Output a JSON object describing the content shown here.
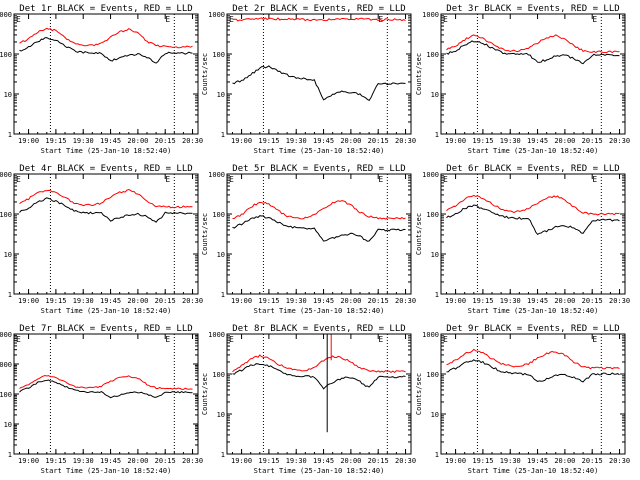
{
  "figure": {
    "common": {
      "xlabel": "Start Time (25-Jan-10 18:52:40)",
      "ylabel": "Counts/sec",
      "x_tick_labels": [
        "19:00",
        "19:15",
        "19:30",
        "19:45",
        "20:00",
        "20:15",
        "20:30"
      ],
      "marker_letters": [
        "E",
        "E"
      ],
      "colors": {
        "events": "#000000",
        "lld": "#ff0000",
        "axes": "#000000",
        "background": "#ffffff"
      }
    }
  },
  "chart_data": [
    {
      "type": "line",
      "title": "Det 1r BLACK = Events, RED = LLD",
      "x_ticks": [
        "19:00",
        "19:15",
        "19:30",
        "19:45",
        "20:00",
        "20:15",
        "20:30"
      ],
      "y_scale": "log",
      "ylim": [
        1,
        1000
      ],
      "y_tick_labels": [
        "1",
        "10",
        "100",
        "1000"
      ],
      "x": [
        "18:55",
        "19:00",
        "19:05",
        "19:10",
        "19:15",
        "19:20",
        "19:25",
        "19:30",
        "19:35",
        "19:40",
        "19:45",
        "19:50",
        "19:55",
        "20:00",
        "20:05",
        "20:10",
        "20:15",
        "20:20",
        "20:25",
        "20:30"
      ],
      "dotted_vlines": [
        "19:12",
        "20:20"
      ],
      "series": [
        {
          "name": "Events",
          "color": "#000000",
          "values": [
            120,
            150,
            210,
            250,
            220,
            160,
            120,
            110,
            105,
            105,
            68,
            78,
            95,
            100,
            82,
            60,
            105,
            105,
            105,
            105
          ]
        },
        {
          "name": "LLD",
          "color": "#ff0000",
          "values": [
            185,
            240,
            350,
            440,
            380,
            260,
            190,
            170,
            165,
            190,
            260,
            360,
            410,
            330,
            210,
            160,
            155,
            150,
            150,
            150
          ]
        }
      ]
    },
    {
      "type": "line",
      "title": "Det 2r BLACK = Events, RED = LLD",
      "x_ticks": [
        "19:00",
        "19:15",
        "19:30",
        "19:45",
        "20:00",
        "20:15",
        "20:30"
      ],
      "y_scale": "log",
      "ylim": [
        1,
        1000
      ],
      "y_tick_labels": [
        "1",
        "10",
        "100",
        "1000"
      ],
      "x": [
        "18:55",
        "19:00",
        "19:05",
        "19:10",
        "19:15",
        "19:20",
        "19:25",
        "19:30",
        "19:35",
        "19:40",
        "19:45",
        "19:50",
        "19:55",
        "20:00",
        "20:05",
        "20:10",
        "20:15",
        "20:20",
        "20:25",
        "20:30"
      ],
      "dotted_vlines": [
        "19:12",
        "20:20"
      ],
      "series": [
        {
          "name": "Events",
          "color": "#000000",
          "values": [
            18,
            22,
            30,
            45,
            48,
            38,
            30,
            25,
            24,
            22,
            7,
            10,
            12,
            11,
            10,
            7,
            18,
            18,
            18,
            18
          ]
        },
        {
          "name": "LLD",
          "color": "#ff0000",
          "values": [
            700,
            720,
            750,
            760,
            760,
            750,
            740,
            730,
            720,
            720,
            720,
            730,
            750,
            760,
            750,
            730,
            720,
            720,
            720,
            720
          ]
        }
      ]
    },
    {
      "type": "line",
      "title": "Det 3r BLACK = Events, RED = LLD",
      "x_ticks": [
        "19:00",
        "19:15",
        "19:30",
        "19:45",
        "20:00",
        "20:15",
        "20:30"
      ],
      "y_scale": "log",
      "ylim": [
        1,
        1000
      ],
      "y_tick_labels": [
        "1",
        "10",
        "100",
        "1000"
      ],
      "x": [
        "18:55",
        "19:00",
        "19:05",
        "19:10",
        "19:15",
        "19:20",
        "19:25",
        "19:30",
        "19:35",
        "19:40",
        "19:45",
        "19:50",
        "19:55",
        "20:00",
        "20:05",
        "20:10",
        "20:15",
        "20:20",
        "20:25",
        "20:30"
      ],
      "dotted_vlines": [
        "19:12",
        "20:20"
      ],
      "series": [
        {
          "name": "Events",
          "color": "#000000",
          "values": [
            100,
            120,
            170,
            210,
            190,
            140,
            110,
            100,
            100,
            98,
            62,
            72,
            88,
            92,
            78,
            58,
            95,
            95,
            95,
            95
          ]
        },
        {
          "name": "LLD",
          "color": "#ff0000",
          "values": [
            130,
            160,
            230,
            290,
            250,
            180,
            135,
            120,
            120,
            140,
            190,
            250,
            290,
            240,
            160,
            120,
            115,
            115,
            115,
            115
          ]
        }
      ]
    },
    {
      "type": "line",
      "title": "Det 4r BLACK = Events, RED = LLD",
      "x_ticks": [
        "19:00",
        "19:15",
        "19:30",
        "19:45",
        "20:00",
        "20:15",
        "20:30"
      ],
      "y_scale": "log",
      "ylim": [
        1,
        1000
      ],
      "y_tick_labels": [
        "1",
        "10",
        "100",
        "1000"
      ],
      "x": [
        "18:55",
        "19:00",
        "19:05",
        "19:10",
        "19:15",
        "19:20",
        "19:25",
        "19:30",
        "19:35",
        "19:40",
        "19:45",
        "19:50",
        "19:55",
        "20:00",
        "20:05",
        "20:10",
        "20:15",
        "20:20",
        "20:25",
        "20:30"
      ],
      "dotted_vlines": [
        "19:12",
        "20:20"
      ],
      "series": [
        {
          "name": "Events",
          "color": "#000000",
          "values": [
            110,
            140,
            200,
            240,
            210,
            160,
            120,
            110,
            105,
            105,
            70,
            80,
            95,
            100,
            85,
            62,
            105,
            105,
            105,
            105
          ]
        },
        {
          "name": "LLD",
          "color": "#ff0000",
          "values": [
            190,
            240,
            340,
            400,
            360,
            260,
            190,
            170,
            165,
            190,
            260,
            350,
            390,
            320,
            210,
            160,
            150,
            150,
            150,
            150
          ]
        }
      ]
    },
    {
      "type": "line",
      "title": "Det 5r BLACK = Events, RED = LLD",
      "x_ticks": [
        "19:00",
        "19:15",
        "19:30",
        "19:45",
        "20:00",
        "20:15",
        "20:30"
      ],
      "y_scale": "log",
      "ylim": [
        1,
        1000
      ],
      "y_tick_labels": [
        "1",
        "10",
        "100",
        "1000"
      ],
      "x": [
        "18:55",
        "19:00",
        "19:05",
        "19:10",
        "19:15",
        "19:20",
        "19:25",
        "19:30",
        "19:35",
        "19:40",
        "19:45",
        "19:50",
        "19:55",
        "20:00",
        "20:05",
        "20:10",
        "20:15",
        "20:20",
        "20:25",
        "20:30"
      ],
      "dotted_vlines": [
        "19:12",
        "20:20"
      ],
      "series": [
        {
          "name": "Events",
          "color": "#000000",
          "values": [
            45,
            55,
            75,
            90,
            80,
            62,
            50,
            45,
            44,
            44,
            22,
            25,
            30,
            32,
            28,
            20,
            40,
            40,
            40,
            40
          ]
        },
        {
          "name": "LLD",
          "color": "#ff0000",
          "values": [
            75,
            95,
            150,
            200,
            175,
            120,
            90,
            80,
            80,
            95,
            140,
            190,
            210,
            170,
            110,
            85,
            80,
            78,
            78,
            78
          ]
        }
      ]
    },
    {
      "type": "line",
      "title": "Det 6r BLACK = Events, RED = LLD",
      "x_ticks": [
        "19:00",
        "19:15",
        "19:30",
        "19:45",
        "20:00",
        "20:15",
        "20:30"
      ],
      "y_scale": "log",
      "ylim": [
        1,
        1000
      ],
      "y_tick_labels": [
        "1",
        "10",
        "100",
        "1000"
      ],
      "x": [
        "18:55",
        "19:00",
        "19:05",
        "19:10",
        "19:15",
        "19:20",
        "19:25",
        "19:30",
        "19:35",
        "19:40",
        "19:45",
        "19:50",
        "19:55",
        "20:00",
        "20:05",
        "20:10",
        "20:15",
        "20:20",
        "20:25",
        "20:30"
      ],
      "dotted_vlines": [
        "19:12",
        "20:20"
      ],
      "series": [
        {
          "name": "Events",
          "color": "#000000",
          "values": [
            80,
            100,
            140,
            160,
            140,
            110,
            88,
            80,
            78,
            78,
            30,
            38,
            48,
            52,
            45,
            32,
            70,
            70,
            70,
            70
          ]
        },
        {
          "name": "LLD",
          "color": "#ff0000",
          "values": [
            120,
            160,
            240,
            290,
            250,
            180,
            130,
            115,
            115,
            135,
            190,
            250,
            280,
            230,
            150,
            110,
            100,
            100,
            100,
            100
          ]
        }
      ]
    },
    {
      "type": "line",
      "title": "Det 7r BLACK = Events, RED = LLD",
      "x_ticks": [
        "19:00",
        "19:15",
        "19:30",
        "19:45",
        "20:00",
        "20:15",
        "20:30"
      ],
      "y_scale": "log",
      "ylim": [
        1,
        10000
      ],
      "y_tick_labels": [
        "1",
        "10",
        "100",
        "1000",
        "10000"
      ],
      "x": [
        "18:55",
        "19:00",
        "19:05",
        "19:10",
        "19:15",
        "19:20",
        "19:25",
        "19:30",
        "19:35",
        "19:40",
        "19:45",
        "19:50",
        "19:55",
        "20:00",
        "20:05",
        "20:10",
        "20:15",
        "20:20",
        "20:25",
        "20:30"
      ],
      "dotted_vlines": [
        "19:12",
        "20:20"
      ],
      "series": [
        {
          "name": "Events",
          "color": "#000000",
          "values": [
            120,
            160,
            240,
            290,
            250,
            180,
            135,
            120,
            115,
            115,
            78,
            90,
            110,
            115,
            98,
            75,
            115,
            115,
            115,
            115
          ]
        },
        {
          "name": "LLD",
          "color": "#ff0000",
          "values": [
            160,
            210,
            330,
            420,
            360,
            250,
            180,
            160,
            160,
            185,
            260,
            360,
            400,
            330,
            210,
            160,
            150,
            150,
            150,
            150
          ]
        }
      ]
    },
    {
      "type": "line",
      "title": "Det 8r BLACK = Events, RED = LLD",
      "x_ticks": [
        "19:00",
        "19:15",
        "19:30",
        "19:45",
        "20:00",
        "20:15",
        "20:30"
      ],
      "y_scale": "log",
      "ylim": [
        1,
        1000
      ],
      "y_tick_labels": [
        "1",
        "10",
        "100",
        "1000"
      ],
      "x": [
        "18:55",
        "19:00",
        "19:05",
        "19:10",
        "19:15",
        "19:20",
        "19:25",
        "19:30",
        "19:35",
        "19:40",
        "19:45",
        "19:50",
        "19:55",
        "20:00",
        "20:05",
        "20:10",
        "20:15",
        "20:20",
        "20:25",
        "20:30"
      ],
      "dotted_vlines": [
        "19:12",
        "20:20"
      ],
      "spike_time": "19:47",
      "spike_events_range": [
        3.5,
        1000
      ],
      "series": [
        {
          "name": "Events",
          "color": "#000000",
          "values": [
            100,
            125,
            165,
            180,
            160,
            125,
            100,
            90,
            90,
            85,
            45,
            60,
            80,
            80,
            65,
            45,
            85,
            85,
            85,
            85
          ]
        },
        {
          "name": "LLD",
          "color": "#ff0000",
          "values": [
            120,
            160,
            230,
            290,
            250,
            180,
            140,
            125,
            125,
            140,
            220,
            280,
            250,
            200,
            145,
            120,
            115,
            115,
            115,
            115
          ]
        }
      ]
    },
    {
      "type": "line",
      "title": "Det 9r BLACK = Events, RED = LLD",
      "x_ticks": [
        "19:00",
        "19:15",
        "19:30",
        "19:45",
        "20:00",
        "20:15",
        "20:30"
      ],
      "y_scale": "log",
      "ylim": [
        1,
        1000
      ],
      "y_tick_labels": [
        "1",
        "10",
        "100",
        "1000"
      ],
      "x": [
        "18:55",
        "19:00",
        "19:05",
        "19:10",
        "19:15",
        "19:20",
        "19:25",
        "19:30",
        "19:35",
        "19:40",
        "19:45",
        "19:50",
        "19:55",
        "20:00",
        "20:05",
        "20:10",
        "20:15",
        "20:20",
        "20:25",
        "20:30"
      ],
      "dotted_vlines": [
        "19:12",
        "20:20"
      ],
      "series": [
        {
          "name": "Events",
          "color": "#000000",
          "values": [
            110,
            140,
            190,
            220,
            195,
            150,
            115,
            105,
            100,
            100,
            65,
            75,
            92,
            98,
            82,
            62,
            100,
            100,
            100,
            100
          ]
        },
        {
          "name": "LLD",
          "color": "#ff0000",
          "values": [
            170,
            220,
            320,
            390,
            340,
            240,
            180,
            160,
            155,
            180,
            250,
            330,
            370,
            300,
            200,
            150,
            140,
            140,
            140,
            140
          ]
        }
      ]
    }
  ]
}
